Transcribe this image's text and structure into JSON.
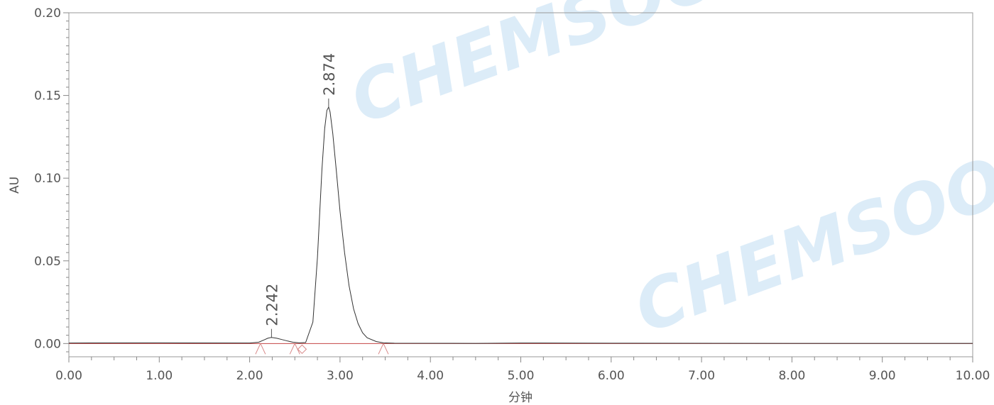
{
  "chart_data": {
    "type": "line",
    "xlabel": "分钟",
    "ylabel": "AU",
    "xlim": [
      0,
      10
    ],
    "ylim": [
      -0.008,
      0.2
    ],
    "x_ticks": [
      "0.00",
      "1.00",
      "2.00",
      "3.00",
      "4.00",
      "5.00",
      "6.00",
      "7.00",
      "8.00",
      "9.00",
      "10.00"
    ],
    "y_ticks": [
      "0.00",
      "0.05",
      "0.10",
      "0.15",
      "0.20"
    ],
    "watermark": "CHEMSOON",
    "series": [
      {
        "x": [
          0,
          1.0,
          2.0,
          2.1,
          2.16,
          2.2,
          2.242,
          2.3,
          2.36,
          2.42,
          2.48,
          2.55,
          2.62,
          2.7,
          2.75,
          2.8,
          2.83,
          2.855,
          2.874,
          2.89,
          2.92,
          2.96,
          3.0,
          3.05,
          3.1,
          3.15,
          3.2,
          3.25,
          3.3,
          3.4,
          3.48,
          3.6,
          4.5,
          5.0,
          6.0,
          8.0,
          10.0
        ],
        "y": [
          0.0003,
          0.0004,
          0.0003,
          0.0008,
          0.0022,
          0.0032,
          0.0037,
          0.0032,
          0.0024,
          0.0015,
          0.0008,
          0.0004,
          0.0006,
          0.013,
          0.052,
          0.105,
          0.13,
          0.141,
          0.143,
          0.14,
          0.127,
          0.104,
          0.08,
          0.055,
          0.035,
          0.021,
          0.012,
          0.0065,
          0.0035,
          0.0012,
          0.0004,
          0.0002,
          0.0001,
          0.0003,
          0.0002,
          0.0001,
          0.0001
        ]
      }
    ],
    "peaks": [
      {
        "label": "2.242",
        "x": 2.242,
        "y": 0.0037
      },
      {
        "label": "2.874",
        "x": 2.874,
        "y": 0.143
      }
    ],
    "integration_markers": [
      {
        "x": 2.12,
        "shape": "triangle"
      },
      {
        "x": 2.5,
        "shape": "triangle"
      },
      {
        "x": 2.58,
        "shape": "diamond"
      },
      {
        "x": 3.48,
        "shape": "triangle"
      }
    ],
    "colors": {
      "trace": "#333333",
      "baseline": "#c44444",
      "markers": "#d88888",
      "axis": "#888888",
      "watermark": "#dcecf8"
    }
  }
}
